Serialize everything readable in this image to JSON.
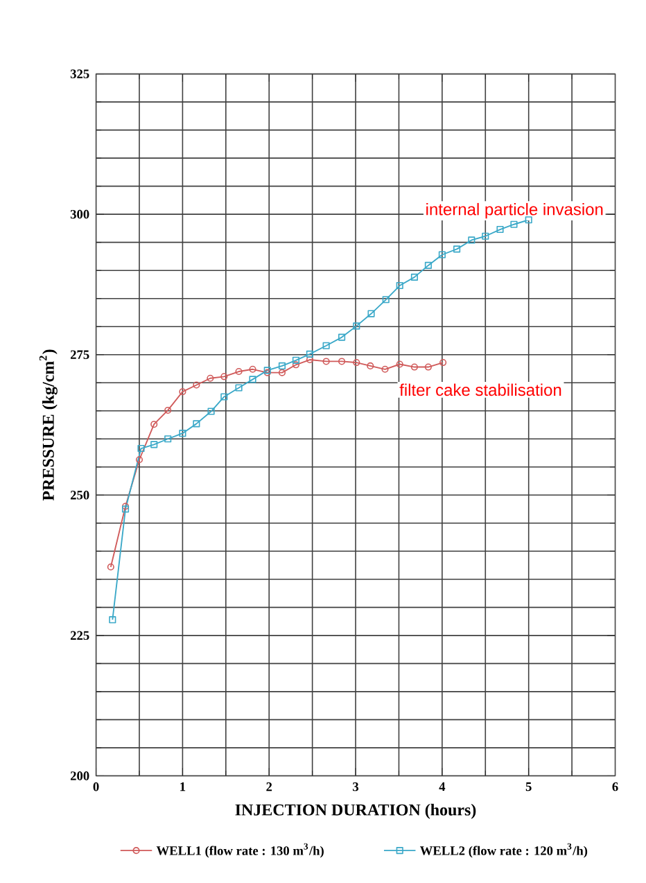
{
  "chart_data": {
    "type": "line",
    "xlabel": "INJECTION DURATION (hours)",
    "ylabel": "PRESSURE (kg/cm$^{2}$)",
    "xlim": [
      0,
      6
    ],
    "ylim": [
      200,
      325
    ],
    "xticks": [
      0,
      1,
      2,
      3,
      4,
      5,
      6
    ],
    "yticks": [
      200,
      225,
      250,
      275,
      300,
      325
    ],
    "grid": true,
    "legend": "bottom",
    "annotations": [
      "internal particle invasion",
      "filter cake stabilisation"
    ],
    "series": [
      {
        "name": "WELL1 (flow rate : 130 m$^{3}$/h)",
        "color": "#d05a5a",
        "marker": "circle",
        "x": [
          0.17,
          0.34,
          0.5,
          0.67,
          0.83,
          1.0,
          1.16,
          1.32,
          1.48,
          1.65,
          1.81,
          1.98,
          2.15,
          2.31,
          2.47,
          2.66,
          2.84,
          3.01,
          3.17,
          3.34,
          3.51,
          3.68,
          3.84,
          4.01
        ],
        "values": [
          237.2,
          248.0,
          256.3,
          262.6,
          265.1,
          268.4,
          269.6,
          270.8,
          271.1,
          272.0,
          272.4,
          271.8,
          271.8,
          273.2,
          274.1,
          273.8,
          273.8,
          273.6,
          273.0,
          272.4,
          273.3,
          272.8,
          272.8,
          273.6
        ]
      },
      {
        "name": "WELL2 (flow rate : 120 m$^{3}$/h)",
        "color": "#3aa8c8",
        "marker": "square",
        "x": [
          0.19,
          0.34,
          0.52,
          0.67,
          0.83,
          1.0,
          1.16,
          1.33,
          1.48,
          1.65,
          1.81,
          1.98,
          2.15,
          2.31,
          2.47,
          2.66,
          2.84,
          3.01,
          3.18,
          3.35,
          3.51,
          3.68,
          3.84,
          4.0,
          4.17,
          4.34,
          4.5,
          4.67,
          4.83,
          5.0
        ],
        "values": [
          227.8,
          247.5,
          258.3,
          259.0,
          260.0,
          261.0,
          262.7,
          264.9,
          267.5,
          269.1,
          270.6,
          272.2,
          273.0,
          274.0,
          275.1,
          276.6,
          278.1,
          280.1,
          282.3,
          284.8,
          287.3,
          288.8,
          290.9,
          292.8,
          293.8,
          295.4,
          296.1,
          297.3,
          298.2,
          299.0
        ]
      }
    ]
  }
}
